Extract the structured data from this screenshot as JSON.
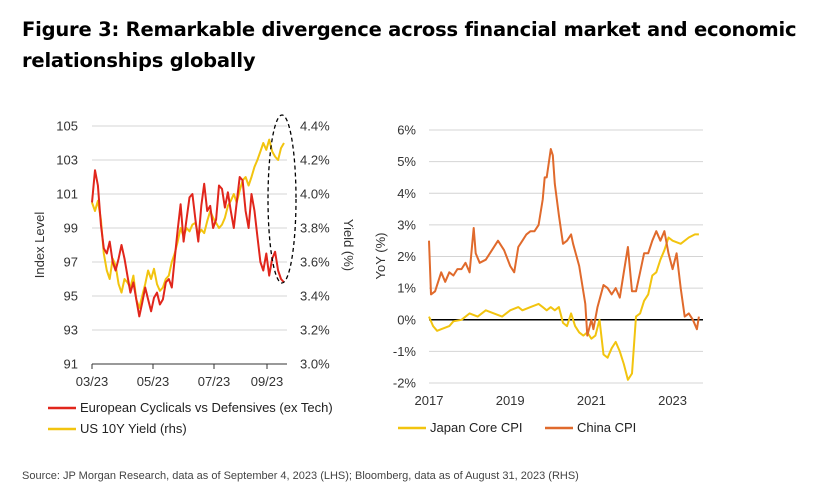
{
  "title": "Figure 3: Remarkable divergence across financial market and economic relationships globally",
  "source": "Source: JP Morgan Research, data as of September 4, 2023 (LHS); Bloomberg, data as of August 31, 2023 (RHS)",
  "colors": {
    "red": "#e1261c",
    "yellow": "#f2c40f",
    "orange": "#e06a2c",
    "black": "#000000",
    "grid": "#d4d4d4"
  },
  "chart_data": [
    {
      "type": "line",
      "x_tick_labels": [
        "03/23",
        "05/23",
        "07/23",
        "09/23"
      ],
      "ylabel": "Index Level",
      "y2label": "Yield (%)",
      "ylim": [
        91,
        105
      ],
      "yticks": [
        91,
        93,
        95,
        97,
        99,
        101,
        103,
        105
      ],
      "y2lim": [
        3.0,
        4.4
      ],
      "y2ticks": [
        "3.0%",
        "3.2%",
        "3.4%",
        "3.6%",
        "3.8%",
        "4.0%",
        "4.2%",
        "4.4%"
      ],
      "grid": true,
      "legend_position": "bottom",
      "annotation": "dashed ellipse highlighting divergence in late Aug / early Sep 2023",
      "series": [
        {
          "name": "European Cyclicals vs Defensives (ex Tech)",
          "axis": "left",
          "color": "#e1261c",
          "values": [
            100.5,
            102.4,
            101.5,
            99.2,
            97.8,
            97.5,
            98.2,
            97.0,
            96.5,
            97.2,
            98.0,
            97.2,
            96.2,
            95.2,
            95.8,
            94.8,
            93.8,
            94.6,
            95.5,
            94.8,
            94.1,
            94.9,
            95.2,
            94.5,
            94.8,
            95.8,
            96.0,
            95.5,
            97.2,
            98.9,
            100.4,
            98.2,
            99.5,
            100.8,
            101.0,
            99.5,
            98.2,
            100.3,
            101.6,
            100.0,
            100.3,
            99.0,
            99.5,
            101.5,
            101.3,
            100.2,
            101.1,
            100.0,
            99.0,
            100.5,
            102.0,
            101.8,
            100.0,
            99.0,
            101.0,
            100.0,
            98.5,
            97.0,
            96.5,
            97.5,
            96.2,
            97.2,
            97.6,
            96.5,
            96.0,
            95.8
          ]
        },
        {
          "name": "US 10Y Yield (rhs)",
          "axis": "right",
          "color": "#f2c40f",
          "values": [
            3.95,
            3.9,
            3.96,
            3.85,
            3.65,
            3.55,
            3.5,
            3.62,
            3.58,
            3.47,
            3.42,
            3.5,
            3.48,
            3.45,
            3.52,
            3.38,
            3.33,
            3.4,
            3.47,
            3.55,
            3.5,
            3.56,
            3.47,
            3.43,
            3.45,
            3.5,
            3.52,
            3.6,
            3.65,
            3.72,
            3.8,
            3.75,
            3.8,
            3.78,
            3.82,
            3.83,
            3.76,
            3.79,
            3.77,
            3.84,
            3.9,
            3.86,
            3.83,
            3.8,
            3.82,
            3.86,
            3.93,
            3.96,
            4.0,
            3.95,
            4.02,
            4.08,
            4.1,
            4.05,
            4.1,
            4.16,
            4.2,
            4.25,
            4.3,
            4.26,
            4.32,
            4.25,
            4.22,
            4.2,
            4.27,
            4.3
          ]
        }
      ]
    },
    {
      "type": "line",
      "x_tick_labels": [
        "2017",
        "2019",
        "2021",
        "2023"
      ],
      "xlim": [
        2017,
        2023.75
      ],
      "ylabel": "YoY (%)",
      "ylim": [
        -2,
        6
      ],
      "yticks": [
        "-2%",
        "-1%",
        "0%",
        "1%",
        "2%",
        "3%",
        "4%",
        "5%",
        "6%"
      ],
      "grid": true,
      "legend_position": "bottom",
      "series": [
        {
          "name": "Japan Core CPI",
          "color": "#f2c40f",
          "x": [
            2017.0,
            2017.1,
            2017.2,
            2017.3,
            2017.5,
            2017.6,
            2017.8,
            2018.0,
            2018.2,
            2018.4,
            2018.6,
            2018.8,
            2019.0,
            2019.2,
            2019.3,
            2019.5,
            2019.7,
            2019.8,
            2019.9,
            2020.0,
            2020.1,
            2020.2,
            2020.3,
            2020.4,
            2020.5,
            2020.6,
            2020.7,
            2020.8,
            2020.9,
            2021.0,
            2021.1,
            2021.2,
            2021.3,
            2021.4,
            2021.5,
            2021.6,
            2021.7,
            2021.8,
            2021.9,
            2022.0,
            2022.1,
            2022.2,
            2022.3,
            2022.4,
            2022.5,
            2022.6,
            2022.7,
            2022.8,
            2022.9,
            2023.0,
            2023.2,
            2023.4,
            2023.55,
            2023.65
          ],
          "values": [
            0.1,
            -0.2,
            -0.35,
            -0.3,
            -0.2,
            -0.05,
            0.0,
            0.2,
            0.1,
            0.3,
            0.2,
            0.1,
            0.3,
            0.4,
            0.3,
            0.4,
            0.5,
            0.4,
            0.3,
            0.4,
            0.3,
            0.4,
            -0.1,
            -0.2,
            0.2,
            -0.2,
            -0.4,
            -0.5,
            -0.4,
            -0.6,
            -0.5,
            0.0,
            -1.1,
            -1.2,
            -0.9,
            -0.7,
            -1.0,
            -1.4,
            -1.9,
            -1.7,
            0.1,
            0.2,
            0.6,
            0.8,
            1.4,
            1.5,
            1.9,
            2.2,
            2.6,
            2.5,
            2.4,
            2.6,
            2.7,
            2.7
          ]
        },
        {
          "name": "China CPI",
          "color": "#e06a2c",
          "x": [
            2017.0,
            2017.05,
            2017.15,
            2017.3,
            2017.4,
            2017.5,
            2017.6,
            2017.7,
            2017.8,
            2017.9,
            2018.0,
            2018.1,
            2018.15,
            2018.25,
            2018.4,
            2018.5,
            2018.7,
            2018.85,
            2019.0,
            2019.1,
            2019.2,
            2019.3,
            2019.4,
            2019.5,
            2019.6,
            2019.7,
            2019.8,
            2019.85,
            2019.9,
            2020.0,
            2020.05,
            2020.1,
            2020.2,
            2020.3,
            2020.4,
            2020.5,
            2020.55,
            2020.7,
            2020.85,
            2020.9,
            2021.0,
            2021.05,
            2021.15,
            2021.3,
            2021.4,
            2021.5,
            2021.6,
            2021.7,
            2021.8,
            2021.9,
            2022.0,
            2022.1,
            2022.2,
            2022.3,
            2022.4,
            2022.5,
            2022.6,
            2022.7,
            2022.8,
            2022.9,
            2023.0,
            2023.1,
            2023.2,
            2023.3,
            2023.4,
            2023.5,
            2023.6,
            2023.65
          ],
          "values": [
            2.5,
            0.8,
            0.9,
            1.5,
            1.2,
            1.5,
            1.4,
            1.6,
            1.6,
            1.8,
            1.5,
            2.9,
            2.1,
            1.8,
            1.9,
            2.1,
            2.5,
            2.2,
            1.7,
            1.5,
            2.3,
            2.5,
            2.7,
            2.8,
            2.8,
            3.0,
            3.8,
            4.5,
            4.5,
            5.4,
            5.2,
            4.3,
            3.3,
            2.4,
            2.5,
            2.7,
            2.4,
            1.7,
            0.5,
            -0.5,
            0.0,
            -0.3,
            0.4,
            1.1,
            1.0,
            0.8,
            1.0,
            0.7,
            1.5,
            2.3,
            0.9,
            0.9,
            1.5,
            2.1,
            2.1,
            2.5,
            2.8,
            2.5,
            2.8,
            2.1,
            1.6,
            2.1,
            1.0,
            0.1,
            0.2,
            0.0,
            -0.3,
            0.1
          ]
        }
      ]
    }
  ]
}
